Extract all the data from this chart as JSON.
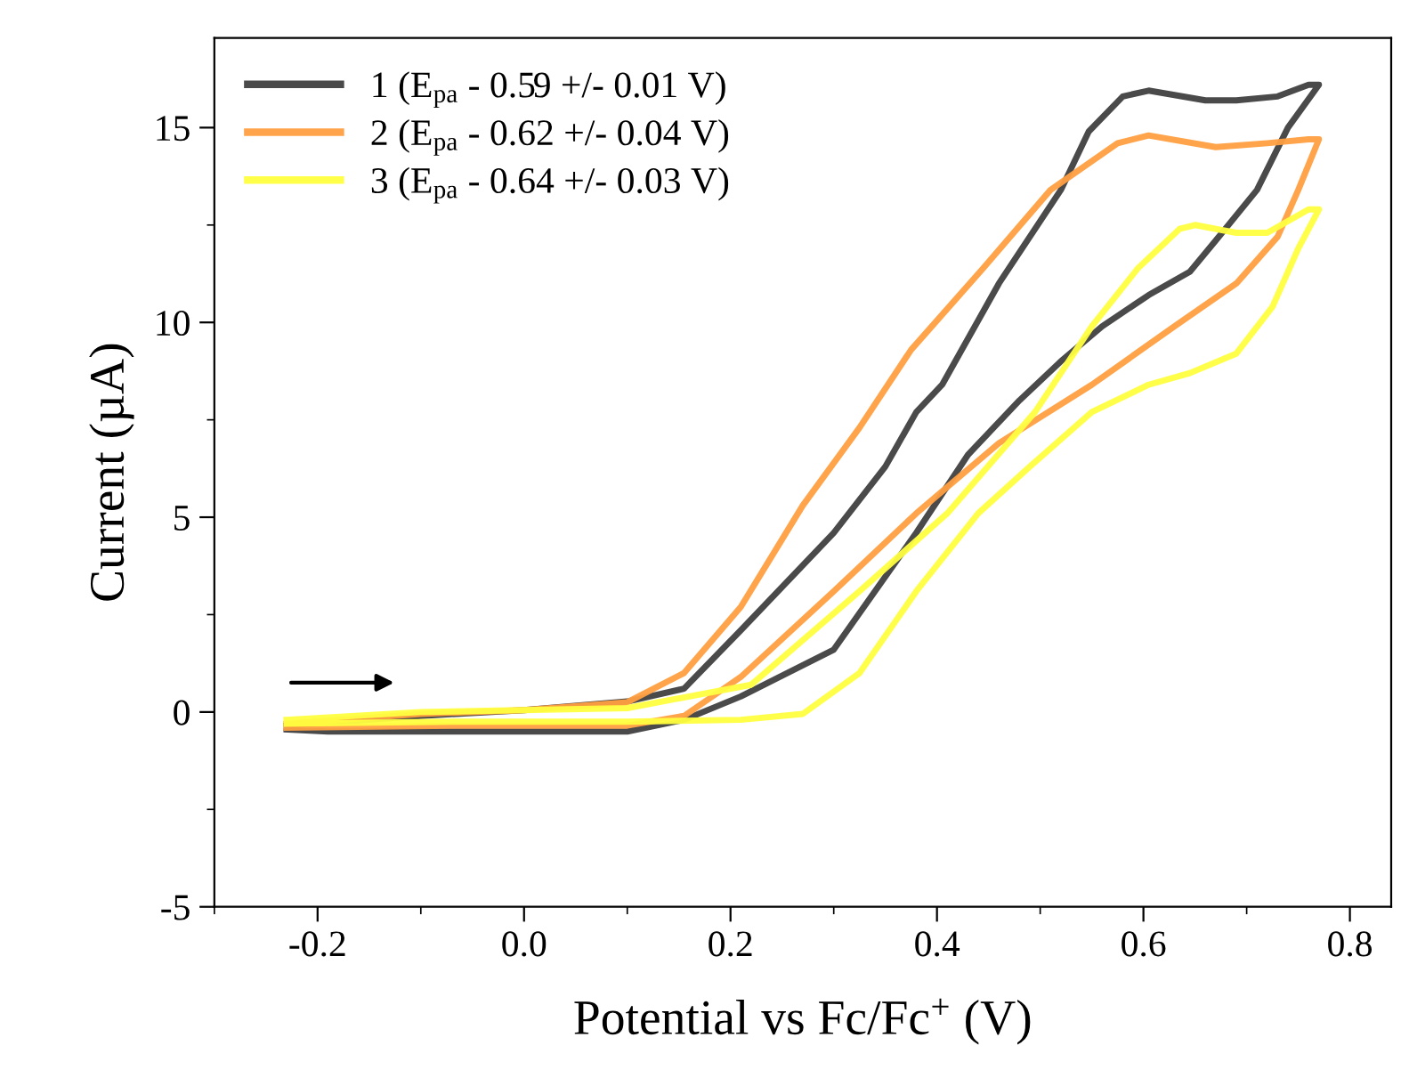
{
  "chart_data": {
    "type": "line",
    "xlabel": "Potential vs Fc/Fc$^{+}$ (V)",
    "ylabel": "Current (µA)",
    "xlim": [
      -0.3,
      0.84
    ],
    "ylim": [
      -5,
      17.3
    ],
    "xticks": [
      {
        "value": -0.2,
        "label": "-0.2"
      },
      {
        "value": 0,
        "label": "0.0"
      },
      {
        "value": 0.2,
        "label": "0.2"
      },
      {
        "value": 0.4,
        "label": "0.4"
      },
      {
        "value": 0.6,
        "label": "0.6"
      },
      {
        "value": 0.8,
        "label": "0.8"
      }
    ],
    "yticks": [
      -5,
      0,
      5,
      10,
      15
    ],
    "legend": "top left",
    "grid": false,
    "line_style": "solid",
    "marker": "none",
    "series": [
      {
        "name": "1 (E$_{pa}$ - 0.59 +/- 0.01 V)",
        "color": "#404040",
        "x": [
          -0.23,
          -0.1,
          0.0,
          0.1,
          0.155,
          0.21,
          0.3,
          0.35,
          0.38,
          0.405,
          0.46,
          0.52,
          0.547,
          0.58,
          0.605,
          0.66,
          0.69,
          0.73,
          0.76,
          0.77,
          0.74,
          0.71,
          0.67,
          0.645,
          0.605,
          0.56,
          0.52,
          0.48,
          0.43,
          0.38,
          0.3,
          0.21,
          0.155,
          0.1,
          -0.02,
          -0.19,
          -0.23
        ],
        "values": [
          -0.35,
          -0.1,
          0.05,
          0.27,
          0.6,
          2.1,
          4.6,
          6.3,
          7.7,
          8.4,
          11.0,
          13.4,
          14.9,
          15.8,
          15.95,
          15.7,
          15.7,
          15.8,
          16.1,
          16.1,
          15.0,
          13.4,
          12.1,
          11.3,
          10.7,
          9.9,
          9.0,
          8.0,
          6.6,
          4.6,
          1.6,
          0.4,
          -0.2,
          -0.5,
          -0.5,
          -0.5,
          -0.45
        ]
      },
      {
        "name": "2 (E$_{pa}$ - 0.62 +/- 0.04 V)",
        "color": "#ff9f40",
        "x": [
          -0.23,
          -0.1,
          0.0,
          0.1,
          0.155,
          0.21,
          0.27,
          0.325,
          0.375,
          0.445,
          0.51,
          0.575,
          0.605,
          0.67,
          0.72,
          0.76,
          0.77,
          0.75,
          0.73,
          0.69,
          0.63,
          0.55,
          0.46,
          0.38,
          0.3,
          0.21,
          0.155,
          0.1,
          -0.07,
          -0.23
        ],
        "values": [
          -0.3,
          -0.05,
          0.05,
          0.25,
          1.0,
          2.7,
          5.3,
          7.3,
          9.3,
          11.4,
          13.4,
          14.6,
          14.8,
          14.5,
          14.6,
          14.7,
          14.7,
          13.4,
          12.2,
          11.0,
          9.9,
          8.4,
          6.9,
          5.1,
          3.1,
          0.9,
          -0.1,
          -0.35,
          -0.35,
          -0.4
        ]
      },
      {
        "name": "3 (E$_{pa}$ - 0.64 +/- 0.03 V)",
        "color": "#ffff40",
        "x": [
          -0.23,
          -0.1,
          0.1,
          0.22,
          0.325,
          0.41,
          0.495,
          0.55,
          0.595,
          0.635,
          0.65,
          0.69,
          0.72,
          0.76,
          0.77,
          0.75,
          0.725,
          0.69,
          0.645,
          0.605,
          0.55,
          0.49,
          0.44,
          0.38,
          0.325,
          0.27,
          0.21,
          0.1,
          -0.07,
          -0.23
        ],
        "values": [
          -0.2,
          0.0,
          0.1,
          0.7,
          3.1,
          5.1,
          7.7,
          9.9,
          11.4,
          12.4,
          12.5,
          12.3,
          12.3,
          12.9,
          12.9,
          11.9,
          10.4,
          9.2,
          8.7,
          8.4,
          7.7,
          6.3,
          5.1,
          3.1,
          1.0,
          -0.05,
          -0.2,
          -0.25,
          -0.25,
          -0.3
        ]
      }
    ]
  }
}
